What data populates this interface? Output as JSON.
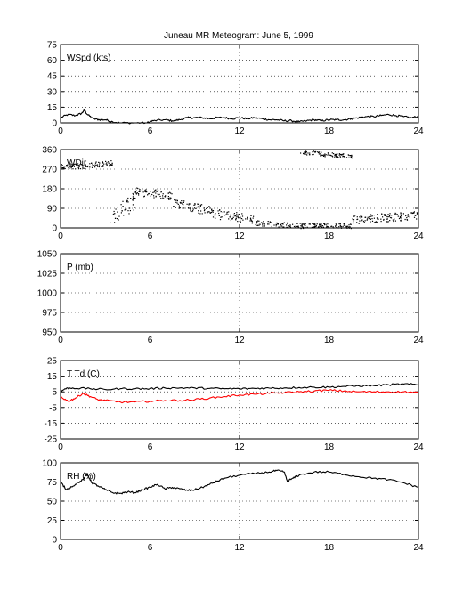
{
  "title": "Juneau MR Meteogram:       June   5, 1999",
  "colors": {
    "axis": "#000000",
    "series_black": "#000000",
    "series_red": "#ff0000"
  },
  "chart_data": [
    {
      "type": "line",
      "label": "WSpd (kts)",
      "xlim": [
        0,
        24
      ],
      "ylim": [
        0,
        75
      ],
      "xticks": [
        0,
        6,
        12,
        18,
        24
      ],
      "yticks": [
        0,
        15,
        30,
        45,
        60,
        75
      ],
      "grid": true,
      "series": [
        {
          "color": "#000000",
          "style": "line",
          "points": [
            [
              0,
              5
            ],
            [
              0.5,
              8
            ],
            [
              1,
              7
            ],
            [
              1.4,
              9
            ],
            [
              1.6,
              12
            ],
            [
              1.8,
              8
            ],
            [
              2.2,
              4
            ],
            [
              2.6,
              3
            ],
            [
              3,
              3
            ],
            [
              3.5,
              1
            ],
            [
              4,
              0
            ],
            [
              5,
              0
            ],
            [
              5.8,
              0
            ],
            [
              6.2,
              2
            ],
            [
              7,
              3
            ],
            [
              7.5,
              2
            ],
            [
              8,
              3
            ],
            [
              8.5,
              5
            ],
            [
              9,
              5
            ],
            [
              9.5,
              5
            ],
            [
              10,
              4
            ],
            [
              10.5,
              5
            ],
            [
              11,
              5
            ],
            [
              11.5,
              4
            ],
            [
              12,
              5
            ],
            [
              12.5,
              4
            ],
            [
              13,
              5
            ],
            [
              13.5,
              4
            ],
            [
              14,
              3
            ],
            [
              14.5,
              3
            ],
            [
              15,
              2
            ],
            [
              15.5,
              2
            ],
            [
              16,
              1
            ],
            [
              16.5,
              2
            ],
            [
              17,
              3
            ],
            [
              17.5,
              2
            ],
            [
              18,
              3
            ],
            [
              18.5,
              3
            ],
            [
              19,
              3
            ],
            [
              19.5,
              4
            ],
            [
              20,
              5
            ],
            [
              20.5,
              6
            ],
            [
              21,
              6
            ],
            [
              21.5,
              7
            ],
            [
              22,
              8
            ],
            [
              22.5,
              7
            ],
            [
              23,
              6
            ],
            [
              23.5,
              5
            ],
            [
              24,
              6
            ]
          ]
        }
      ]
    },
    {
      "type": "scatter",
      "label": "WDir",
      "xlim": [
        0,
        24
      ],
      "ylim": [
        0,
        360
      ],
      "xticks": [
        0,
        6,
        12,
        18,
        24
      ],
      "yticks": [
        0,
        90,
        180,
        270,
        360
      ],
      "grid": true,
      "series": [
        {
          "color": "#000000",
          "style": "dots",
          "segments": [
            {
              "x0": 0.0,
              "x1": 1.8,
              "y0": 285,
              "y1": 285,
              "spread": 25
            },
            {
              "x0": 1.8,
              "x1": 3.5,
              "y0": 290,
              "y1": 300,
              "spread": 25
            },
            {
              "x0": 3.3,
              "x1": 5.0,
              "y0": 40,
              "y1": 130,
              "spread": 80
            },
            {
              "x0": 5.0,
              "x1": 7.5,
              "y0": 170,
              "y1": 150,
              "spread": 40
            },
            {
              "x0": 7.5,
              "x1": 10.0,
              "y0": 120,
              "y1": 80,
              "spread": 45
            },
            {
              "x0": 10.0,
              "x1": 13.0,
              "y0": 70,
              "y1": 40,
              "spread": 45
            },
            {
              "x0": 13.0,
              "x1": 16.5,
              "y0": 25,
              "y1": 10,
              "spread": 25
            },
            {
              "x0": 16.0,
              "x1": 19.5,
              "y0": 350,
              "y1": 330,
              "spread": 20
            },
            {
              "x0": 16.5,
              "x1": 19.5,
              "y0": 15,
              "y1": 10,
              "spread": 20
            },
            {
              "x0": 19.5,
              "x1": 24.0,
              "y0": 40,
              "y1": 60,
              "spread": 40
            }
          ]
        }
      ]
    },
    {
      "type": "line",
      "label": "P (mb)",
      "xlim": [
        0,
        24
      ],
      "ylim": [
        950,
        1050
      ],
      "xticks": [
        0,
        6,
        12,
        18,
        24
      ],
      "yticks": [
        950,
        975,
        1000,
        1025,
        1050
      ],
      "grid": true,
      "series": []
    },
    {
      "type": "line",
      "label": "T Td (C)",
      "xlim": [
        0,
        24
      ],
      "ylim": [
        -25,
        25
      ],
      "xticks": [
        0,
        6,
        12,
        18,
        24
      ],
      "yticks": [
        -25,
        -15,
        -5,
        5,
        15,
        25
      ],
      "grid": true,
      "series": [
        {
          "color": "#000000",
          "style": "line",
          "points": [
            [
              0,
              5
            ],
            [
              0.3,
              7
            ],
            [
              0.8,
              7.5
            ],
            [
              2,
              7
            ],
            [
              3,
              6.5
            ],
            [
              4,
              7
            ],
            [
              5,
              7
            ],
            [
              6,
              7
            ],
            [
              7,
              7.5
            ],
            [
              8,
              7.5
            ],
            [
              9,
              7.5
            ],
            [
              10,
              7.2
            ],
            [
              11,
              7
            ],
            [
              12,
              7
            ],
            [
              13,
              7.2
            ],
            [
              14,
              7.4
            ],
            [
              15,
              7.5
            ],
            [
              16,
              7.8
            ],
            [
              17,
              8
            ],
            [
              18,
              8
            ],
            [
              19,
              8.5
            ],
            [
              20,
              8.8
            ],
            [
              21,
              9
            ],
            [
              22,
              9.5
            ],
            [
              23,
              10
            ],
            [
              24,
              9.5
            ]
          ]
        },
        {
          "color": "#ff0000",
          "style": "line",
          "points": [
            [
              0,
              2
            ],
            [
              0.5,
              -1
            ],
            [
              1,
              1
            ],
            [
              1.5,
              4
            ],
            [
              2,
              2
            ],
            [
              2.5,
              0
            ],
            [
              3,
              -0.5
            ],
            [
              4,
              -1.5
            ],
            [
              5,
              -1.5
            ],
            [
              6,
              -1
            ],
            [
              7,
              -0.5
            ],
            [
              8,
              -0.5
            ],
            [
              9,
              0
            ],
            [
              10,
              1
            ],
            [
              11,
              2
            ],
            [
              12,
              3
            ],
            [
              13,
              3.5
            ],
            [
              14,
              4
            ],
            [
              15,
              4.5
            ],
            [
              16,
              5
            ],
            [
              17,
              5.5
            ],
            [
              18,
              6
            ],
            [
              19,
              5.5
            ],
            [
              20,
              5
            ],
            [
              21,
              5
            ],
            [
              22,
              5
            ],
            [
              23,
              5
            ],
            [
              24,
              4.5
            ]
          ]
        }
      ]
    },
    {
      "type": "line",
      "label": "RH (%)",
      "xlim": [
        0,
        24
      ],
      "ylim": [
        0,
        100
      ],
      "xticks": [
        0,
        6,
        12,
        18,
        24
      ],
      "yticks": [
        0,
        25,
        50,
        75,
        100
      ],
      "grid": true,
      "series": [
        {
          "color": "#000000",
          "style": "line",
          "points": [
            [
              0,
              75
            ],
            [
              0.4,
              65
            ],
            [
              1,
              72
            ],
            [
              1.5,
              78
            ],
            [
              1.8,
              85
            ],
            [
              2.1,
              74
            ],
            [
              2.5,
              70
            ],
            [
              3,
              65
            ],
            [
              3.5,
              61
            ],
            [
              4,
              60
            ],
            [
              4.5,
              62
            ],
            [
              5,
              61
            ],
            [
              5.5,
              65
            ],
            [
              6,
              68
            ],
            [
              6.5,
              72
            ],
            [
              7,
              66
            ],
            [
              7.5,
              68
            ],
            [
              8,
              66
            ],
            [
              8.5,
              64
            ],
            [
              9,
              65
            ],
            [
              9.5,
              68
            ],
            [
              10,
              72
            ],
            [
              10.5,
              76
            ],
            [
              11,
              80
            ],
            [
              12,
              84
            ],
            [
              13,
              86
            ],
            [
              14,
              88
            ],
            [
              14.5,
              90
            ],
            [
              15,
              88
            ],
            [
              15.2,
              76
            ],
            [
              15.6,
              80
            ],
            [
              16,
              84
            ],
            [
              17,
              88
            ],
            [
              18,
              88
            ],
            [
              19,
              85
            ],
            [
              20,
              82
            ],
            [
              21,
              80
            ],
            [
              22,
              78
            ],
            [
              23,
              74
            ],
            [
              24,
              68
            ]
          ]
        }
      ]
    }
  ]
}
